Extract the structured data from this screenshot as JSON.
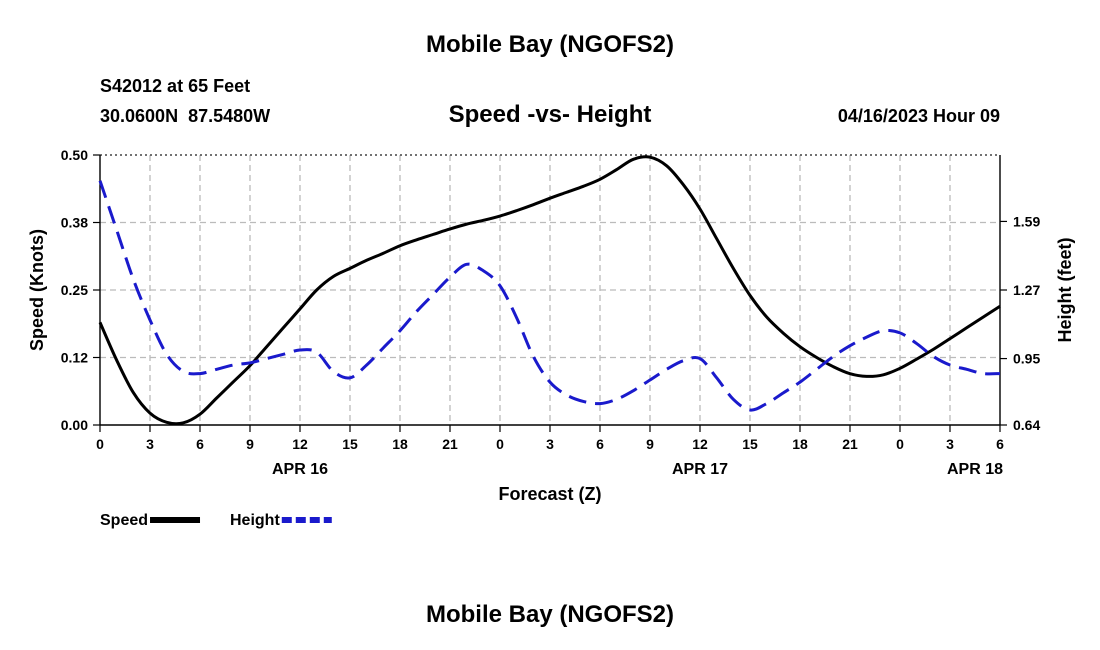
{
  "header": {
    "title": "Mobile Bay (NGOFS2)",
    "station": "S42012 at 65 Feet",
    "coords": "30.0600N  87.5480W",
    "subtitle": "Speed -vs- Height",
    "date": "04/16/2023 Hour 09"
  },
  "footer": {
    "title": "Mobile Bay (NGOFS2)"
  },
  "colors": {
    "speed": "#000000",
    "height": "#1a1acc",
    "grid": "#bbbbbb"
  },
  "chart_data": {
    "type": "line",
    "title": "Speed -vs- Height",
    "xlabel": "Forecast (Z)",
    "ylabel": "Speed (Knots)",
    "y2label": "Height (feet)",
    "xlim": [
      0,
      54
    ],
    "ylim": [
      0,
      0.5
    ],
    "y2lim": [
      0.64,
      1.9
    ],
    "x_ticks": [
      0,
      3,
      6,
      9,
      12,
      15,
      18,
      21,
      24,
      27,
      30,
      33,
      36,
      39,
      42,
      45,
      48,
      51,
      54
    ],
    "x_tick_labels": [
      "0",
      "3",
      "6",
      "9",
      "12",
      "15",
      "18",
      "21",
      "0",
      "3",
      "6",
      "9",
      "12",
      "15",
      "18",
      "21",
      "0",
      "3",
      "6"
    ],
    "date_labels": [
      {
        "x": 12,
        "label": "APR 16"
      },
      {
        "x": 36,
        "label": "APR 17"
      },
      {
        "x": 52.5,
        "label": "APR 18"
      }
    ],
    "y_ticks": [
      0,
      0.125,
      0.25,
      0.375,
      0.5
    ],
    "y_tick_labels": [
      "0.00",
      "0.12",
      "0.25",
      "0.38",
      "0.50"
    ],
    "y2_ticks": [
      0.64,
      0.95,
      1.27,
      1.59
    ],
    "y2_tick_labels": [
      "0.64",
      "0.95",
      "1.27",
      "1.59"
    ],
    "legend": [
      {
        "name": "Speed",
        "style": "solid"
      },
      {
        "name": "Height",
        "style": "dashed"
      }
    ],
    "series": [
      {
        "name": "Speed",
        "axis": "left",
        "x": [
          0,
          1,
          2,
          3,
          4,
          5,
          6,
          7,
          8,
          9,
          10,
          11,
          12,
          13,
          14,
          15,
          16,
          17,
          18,
          19,
          20,
          21,
          22,
          23,
          24,
          25,
          26,
          27,
          28,
          29,
          30,
          31,
          32,
          33,
          34,
          35,
          36,
          37,
          38,
          39,
          40,
          41,
          42,
          43,
          44,
          45,
          46,
          47,
          48,
          49,
          50,
          51,
          52,
          53,
          54
        ],
        "values": [
          0.19,
          0.12,
          0.06,
          0.022,
          0.005,
          0.004,
          0.02,
          0.05,
          0.08,
          0.11,
          0.145,
          0.18,
          0.215,
          0.25,
          0.275,
          0.29,
          0.305,
          0.318,
          0.332,
          0.343,
          0.353,
          0.363,
          0.372,
          0.379,
          0.387,
          0.397,
          0.408,
          0.42,
          0.431,
          0.442,
          0.455,
          0.473,
          0.492,
          0.496,
          0.48,
          0.445,
          0.4,
          0.345,
          0.29,
          0.24,
          0.2,
          0.17,
          0.145,
          0.125,
          0.108,
          0.095,
          0.09,
          0.093,
          0.105,
          0.122,
          0.14,
          0.16,
          0.18,
          0.2,
          0.22
        ]
      },
      {
        "name": "Height",
        "axis": "right",
        "x": [
          0,
          1,
          2,
          3,
          4,
          5,
          6,
          7,
          8,
          9,
          10,
          11,
          12,
          13,
          14,
          15,
          16,
          17,
          18,
          19,
          20,
          21,
          22,
          23,
          24,
          25,
          26,
          27,
          28,
          29,
          30,
          31,
          32,
          33,
          34,
          35,
          36,
          37,
          38,
          39,
          40,
          41,
          42,
          43,
          44,
          45,
          46,
          47,
          48,
          49,
          50,
          51,
          52,
          53,
          54
        ],
        "values": [
          1.78,
          1.55,
          1.32,
          1.13,
          0.97,
          0.89,
          0.88,
          0.9,
          0.92,
          0.93,
          0.95,
          0.97,
          0.99,
          0.98,
          0.89,
          0.86,
          0.92,
          1.0,
          1.08,
          1.17,
          1.25,
          1.33,
          1.39,
          1.36,
          1.29,
          1.14,
          0.96,
          0.84,
          0.78,
          0.75,
          0.74,
          0.76,
          0.8,
          0.85,
          0.9,
          0.94,
          0.95,
          0.86,
          0.76,
          0.71,
          0.74,
          0.79,
          0.84,
          0.9,
          0.96,
          1.01,
          1.05,
          1.08,
          1.07,
          1.02,
          0.96,
          0.92,
          0.9,
          0.88,
          0.88
        ]
      }
    ]
  }
}
